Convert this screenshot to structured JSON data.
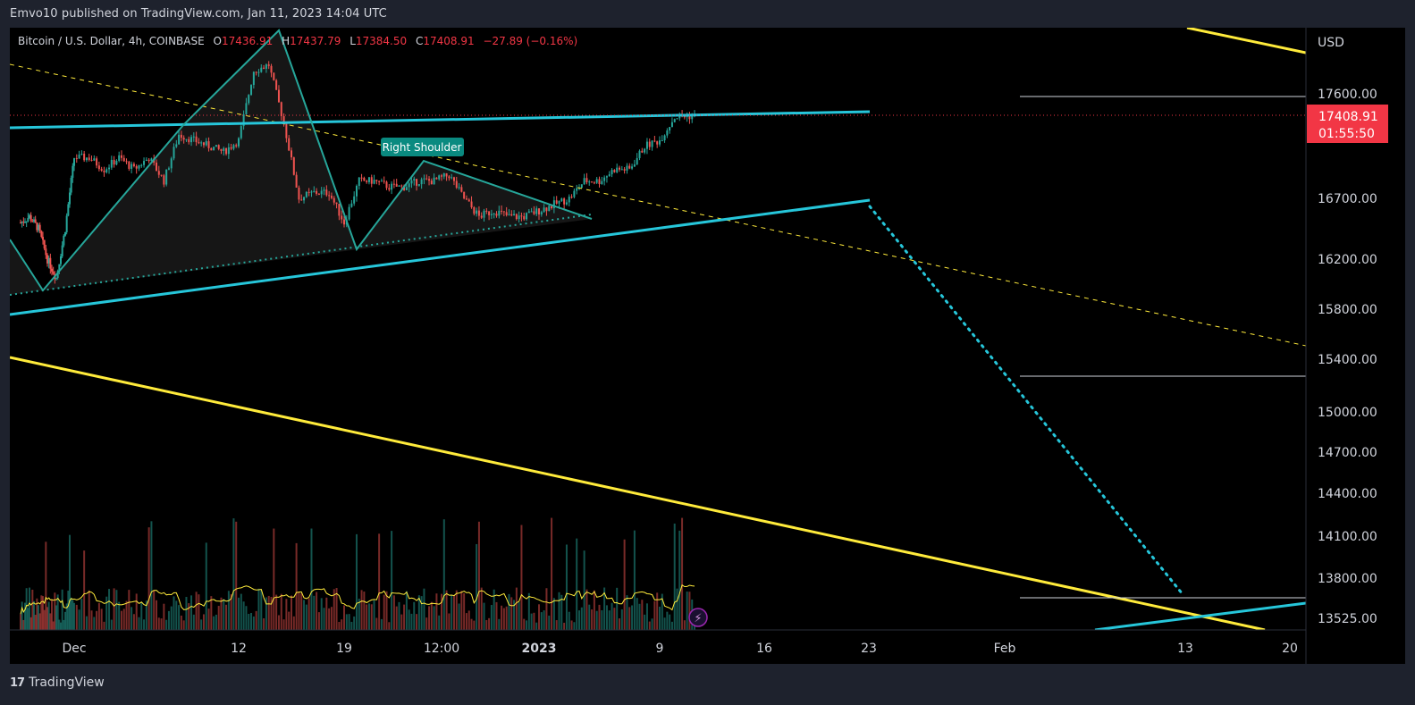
{
  "header": {
    "publish_text": "Emvo10 published on TradingView.com, Jan 11, 2023 14:04 UTC"
  },
  "legend": {
    "symbol": "Bitcoin / U.S. Dollar, 4h, COINBASE",
    "open_label": "O",
    "open": "17436.91",
    "high_label": "H",
    "high": "17437.79",
    "low_label": "L",
    "low": "17384.50",
    "close_label": "C",
    "close": "17408.91",
    "change": "−27.89 (−0.16%)"
  },
  "price_axis": {
    "currency": "USD",
    "last_price": "17408.91",
    "countdown": "01:55:50"
  },
  "footer": {
    "brand": "TradingView"
  },
  "colors": {
    "up": "#26a69a",
    "down": "#ef5350",
    "trendline": "#26c6da",
    "channel": "#ffeb3b",
    "pattern": "#26a69a",
    "label_bg": "#0a8a80",
    "last_price_bg": "#f23645"
  },
  "chart_data": {
    "type": "candlestick",
    "title": "Bitcoin / U.S. Dollar, 4h, COINBASE",
    "interval": "4h",
    "x_ticks": [
      "Dec",
      "12",
      "19",
      "12:00",
      "2023",
      "9",
      "16",
      "23",
      "Feb",
      "13",
      "20"
    ],
    "y_ticks": [
      "17600.00",
      "16700.00",
      "16200.00",
      "15800.00",
      "15400.00",
      "15000.00",
      "14700.00",
      "14400.00",
      "14100.00",
      "13800.00",
      "13525.00"
    ],
    "y_scale": "log",
    "price_path": [
      {
        "date": "2022-11-25",
        "price": 16500
      },
      {
        "date": "2022-11-26",
        "price": 16550
      },
      {
        "date": "2022-11-27",
        "price": 16450
      },
      {
        "date": "2022-11-28",
        "price": 16200
      },
      {
        "date": "2022-11-29",
        "price": 16050
      },
      {
        "date": "2022-11-30",
        "price": 16450
      },
      {
        "date": "2022-12-01",
        "price": 17050
      },
      {
        "date": "2022-12-02",
        "price": 17050
      },
      {
        "date": "2022-12-03",
        "price": 16950
      },
      {
        "date": "2022-12-04",
        "price": 17050
      },
      {
        "date": "2022-12-05",
        "price": 16950
      },
      {
        "date": "2022-12-06",
        "price": 17050
      },
      {
        "date": "2022-12-07",
        "price": 16850
      },
      {
        "date": "2022-12-08",
        "price": 17250
      },
      {
        "date": "2022-12-09",
        "price": 17200
      },
      {
        "date": "2022-12-10",
        "price": 17150
      },
      {
        "date": "2022-12-11",
        "price": 17100
      },
      {
        "date": "2022-12-12",
        "price": 17200
      },
      {
        "date": "2022-12-13",
        "price": 17800
      },
      {
        "date": "2022-12-14",
        "price": 17850
      },
      {
        "date": "2022-12-15",
        "price": 17350
      },
      {
        "date": "2022-12-16",
        "price": 16700
      },
      {
        "date": "2022-12-17",
        "price": 16750
      },
      {
        "date": "2022-12-18",
        "price": 16750
      },
      {
        "date": "2022-12-19",
        "price": 16500
      },
      {
        "date": "2022-12-20",
        "price": 16850
      },
      {
        "date": "2022-12-21",
        "price": 16850
      },
      {
        "date": "2022-12-22",
        "price": 16800
      },
      {
        "date": "2022-12-23",
        "price": 16800
      },
      {
        "date": "2022-12-24",
        "price": 16850
      },
      {
        "date": "2022-12-25",
        "price": 16850
      },
      {
        "date": "2022-12-26",
        "price": 16900
      },
      {
        "date": "2022-12-27",
        "price": 16700
      },
      {
        "date": "2022-12-28",
        "price": 16550
      },
      {
        "date": "2022-12-29",
        "price": 16600
      },
      {
        "date": "2022-12-30",
        "price": 16550
      },
      {
        "date": "2022-12-31",
        "price": 16550
      },
      {
        "date": "2023-01-01",
        "price": 16600
      },
      {
        "date": "2023-01-02",
        "price": 16650
      },
      {
        "date": "2023-01-03",
        "price": 16700
      },
      {
        "date": "2023-01-04",
        "price": 16850
      },
      {
        "date": "2023-01-05",
        "price": 16850
      },
      {
        "date": "2023-01-06",
        "price": 16950
      },
      {
        "date": "2023-01-07",
        "price": 16950
      },
      {
        "date": "2023-01-08",
        "price": 17150
      },
      {
        "date": "2023-01-09",
        "price": 17200
      },
      {
        "date": "2023-01-10",
        "price": 17400
      },
      {
        "date": "2023-01-11",
        "price": 17408.91
      }
    ],
    "annotations": [
      "Right Shoulder"
    ],
    "volume_shown": true,
    "grid": false
  }
}
